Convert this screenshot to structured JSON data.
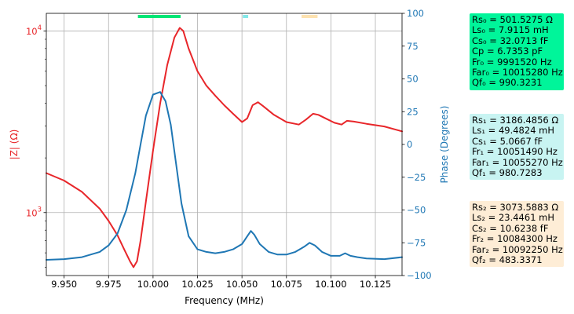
{
  "chart_data": {
    "type": "line",
    "xlabel": "Frequency (MHz)",
    "ylabel_left": "|Z| (Ω)",
    "ylabel_right": "Phase (Degrees)",
    "xlim": [
      9.94,
      10.14
    ],
    "x_ticks": [
      "9.950",
      "9.975",
      "10.000",
      "10.025",
      "10.050",
      "10.075",
      "10.100",
      "10.125"
    ],
    "x_tick_values": [
      9.95,
      9.975,
      10.0,
      10.025,
      10.05,
      10.075,
      10.1,
      10.125
    ],
    "ylim_left": [
      450,
      12500
    ],
    "yscale_left": "log",
    "y_left_ticks": [
      {
        "value": 1000,
        "base": "10",
        "exp": "3"
      },
      {
        "value": 10000,
        "base": "10",
        "exp": "4"
      }
    ],
    "ylim_right": [
      -100,
      100
    ],
    "y_right_ticks": [
      "−100",
      "−75",
      "−50",
      "−25",
      "0",
      "25",
      "50",
      "75",
      "100"
    ],
    "y_right_tick_values": [
      -100,
      -75,
      -50,
      -25,
      0,
      25,
      50,
      75,
      100
    ],
    "grid": true,
    "series": [
      {
        "axis": "left",
        "color": "#e8262a",
        "x": [
          9.94,
          9.95,
          9.96,
          9.97,
          9.975,
          9.98,
          9.984,
          9.987,
          9.989,
          9.991,
          9.993,
          9.996,
          10.0,
          10.004,
          10.008,
          10.012,
          10.015,
          10.017,
          10.02,
          10.025,
          10.03,
          10.035,
          10.04,
          10.045,
          10.05,
          10.053,
          10.056,
          10.059,
          10.062,
          10.068,
          10.075,
          10.082,
          10.086,
          10.09,
          10.093,
          10.097,
          10.102,
          10.106,
          10.109,
          10.113,
          10.12,
          10.13,
          10.14
        ],
        "y": [
          1650,
          1500,
          1300,
          1050,
          900,
          750,
          620,
          540,
          500,
          540,
          700,
          1150,
          2200,
          4000,
          6500,
          9200,
          10400,
          10000,
          8000,
          6000,
          5000,
          4400,
          3900,
          3500,
          3150,
          3300,
          3900,
          4050,
          3850,
          3450,
          3150,
          3050,
          3250,
          3500,
          3450,
          3300,
          3120,
          3050,
          3200,
          3170,
          3080,
          2980,
          2800
        ]
      },
      {
        "axis": "right",
        "color": "#1f77b4",
        "x": [
          9.94,
          9.95,
          9.96,
          9.97,
          9.975,
          9.98,
          9.985,
          9.99,
          9.993,
          9.996,
          10.0,
          10.004,
          10.007,
          10.01,
          10.013,
          10.016,
          10.02,
          10.025,
          10.03,
          10.035,
          10.04,
          10.045,
          10.05,
          10.053,
          10.055,
          10.057,
          10.06,
          10.065,
          10.07,
          10.075,
          10.08,
          10.085,
          10.088,
          10.091,
          10.095,
          10.1,
          10.105,
          10.108,
          10.111,
          10.115,
          10.12,
          10.13,
          10.14
        ],
        "y": [
          -88,
          -87.5,
          -86,
          -82,
          -77,
          -68,
          -50,
          -22,
          0,
          22,
          38,
          40,
          33,
          15,
          -15,
          -45,
          -70,
          -80,
          -82,
          -83,
          -82,
          -80,
          -76,
          -70,
          -66,
          -69,
          -76,
          -82,
          -84,
          -84,
          -82,
          -78,
          -75,
          -77,
          -82,
          -85,
          -85,
          -83,
          -85,
          -86,
          -87,
          -87.5,
          -86
        ]
      }
    ],
    "top_markers": [
      {
        "x_start": 9.9915,
        "x_end": 10.0155,
        "color": "#00e676"
      },
      {
        "x_start": 10.0505,
        "x_end": 10.0535,
        "color": "#84e8e8"
      },
      {
        "x_start": 10.0835,
        "x_end": 10.0925,
        "color": "#fde2b0"
      }
    ]
  },
  "info_boxes": [
    {
      "bg": "#00f59a",
      "lines": [
        "Rs₀ = 501.5275 Ω",
        "Ls₀ = 7.9115 mH",
        "Cs₀ = 32.0713 fF",
        "Cp = 6.7353 pF",
        "Fr₀ = 9991520 Hz",
        "Far₀ = 10015280 Hz",
        "Qf₀ = 990.3231"
      ]
    },
    {
      "bg": "#c8f4f2",
      "lines": [
        "Rs₁ = 3186.4856 Ω",
        "Ls₁ = 49.4824 mH",
        "Cs₁ = 5.0667 fF",
        "Fr₁ = 10051490 Hz",
        "Far₁ = 10055270 Hz",
        "Qf₁ = 980.7283"
      ]
    },
    {
      "bg": "#feedd6",
      "lines": [
        "Rs₂ = 3073.5883 Ω",
        "Ls₂ = 23.4461 mH",
        "Cs₂ = 10.6238 fF",
        "Fr₂ = 10084300 Hz",
        "Far₂ = 10092250 Hz",
        "Qf₂ = 483.3371"
      ]
    }
  ]
}
